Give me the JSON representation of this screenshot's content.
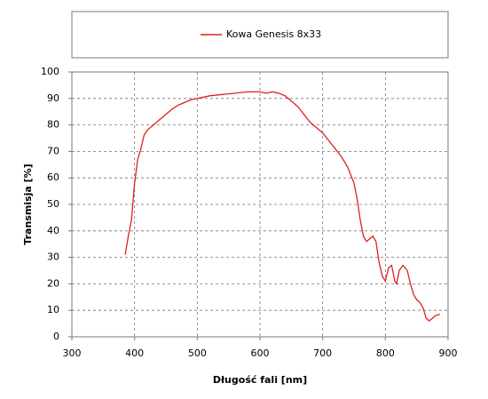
{
  "chart_data": {
    "type": "line",
    "xlabel": "Długość fali [nm]",
    "ylabel": "Transmisja [%]",
    "x": [
      385,
      390,
      395,
      400,
      405,
      410,
      415,
      420,
      430,
      440,
      450,
      460,
      470,
      480,
      490,
      500,
      510,
      520,
      540,
      560,
      580,
      600,
      610,
      620,
      630,
      640,
      650,
      660,
      670,
      680,
      690,
      700,
      710,
      720,
      730,
      740,
      750,
      755,
      760,
      765,
      770,
      775,
      780,
      785,
      790,
      795,
      800,
      805,
      810,
      815,
      818,
      822,
      828,
      835,
      840,
      845,
      850,
      855,
      860,
      865,
      870,
      875,
      880,
      887
    ],
    "series": [
      {
        "name": "Kowa Genesis 8x33",
        "color": "#e02020",
        "values": [
          31,
          38,
          44,
          58,
          67,
          71,
          76,
          78,
          80,
          82,
          84,
          86,
          87.5,
          88.5,
          89.5,
          90,
          90.5,
          91,
          91.5,
          92,
          92.5,
          92.5,
          92,
          92.5,
          92,
          91,
          89,
          87,
          84,
          81,
          79,
          77,
          74,
          71,
          68,
          64,
          58,
          52,
          44,
          38,
          36,
          37,
          38,
          36,
          28,
          23,
          21,
          26,
          27,
          21,
          20,
          25,
          27,
          25,
          20,
          16,
          14,
          13,
          11,
          7,
          6,
          7,
          8,
          8.5
        ]
      }
    ],
    "xlim": [
      300,
      900
    ],
    "xticks": [
      300,
      400,
      500,
      600,
      700,
      800,
      900
    ],
    "ylim": [
      0,
      100
    ],
    "yticks": [
      0,
      10,
      20,
      30,
      40,
      50,
      60,
      70,
      80,
      90,
      100
    ],
    "grid": true
  }
}
